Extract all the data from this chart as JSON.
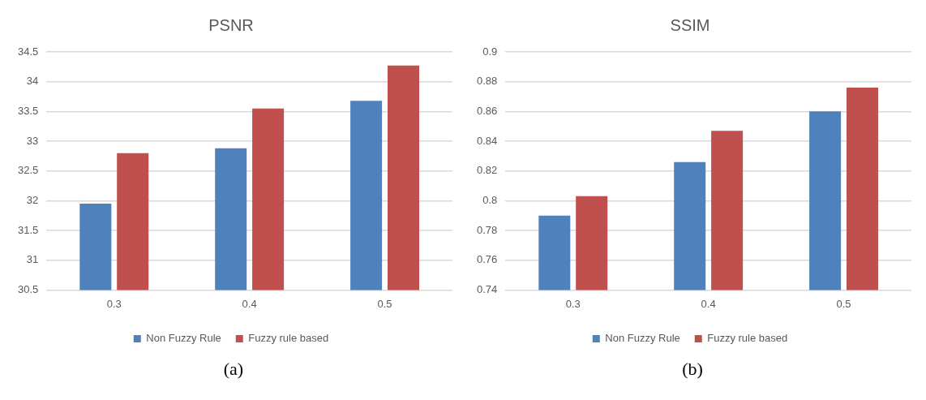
{
  "chart_data": [
    {
      "type": "bar",
      "title": "PSNR",
      "categories": [
        "0.3",
        "0.4",
        "0.5"
      ],
      "series": [
        {
          "name": "Non Fuzzy Rule",
          "color": "#4f81bd",
          "values": [
            31.95,
            32.88,
            33.68
          ]
        },
        {
          "name": "Fuzzy rule based",
          "color": "#c0504d",
          "values": [
            32.8,
            33.55,
            34.27
          ]
        }
      ],
      "ylim": [
        30.5,
        34.5
      ],
      "yticks": [
        30.5,
        31,
        31.5,
        32,
        32.5,
        33,
        33.5,
        34,
        34.5
      ],
      "grid": "y",
      "legend": "bottom",
      "annotations": [
        "(a)"
      ]
    },
    {
      "type": "bar",
      "title": "SSIM",
      "categories": [
        "0.3",
        "0.4",
        "0.5"
      ],
      "series": [
        {
          "name": "Non Fuzzy Rule",
          "color": "#4f81bd",
          "values": [
            0.79,
            0.826,
            0.86
          ]
        },
        {
          "name": "Fuzzy rule based",
          "color": "#c0504d",
          "values": [
            0.803,
            0.847,
            0.876
          ]
        }
      ],
      "ylim": [
        0.74,
        0.9
      ],
      "yticks": [
        0.74,
        0.76,
        0.78,
        0.8,
        0.82,
        0.84,
        0.86,
        0.88,
        0.9
      ],
      "grid": "y",
      "legend": "bottom",
      "annotations": [
        "(b)"
      ]
    }
  ]
}
